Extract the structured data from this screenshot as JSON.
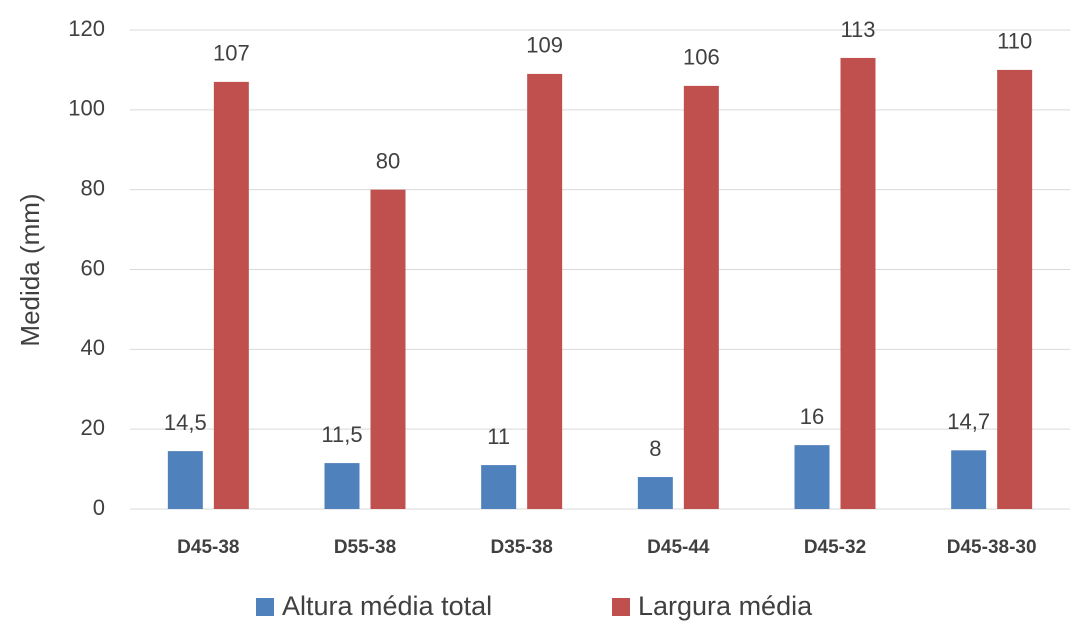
{
  "chart_data": {
    "type": "bar",
    "ylabel": "Medida (mm)",
    "categories": [
      "D45-38",
      "D55-38",
      "D35-38",
      "D45-44",
      "D45-32",
      "D45-38-30"
    ],
    "series": [
      {
        "name": "Altura média total",
        "color": "#4f81bd",
        "values": [
          14.5,
          11.5,
          11,
          8,
          16,
          14.7
        ],
        "value_labels": [
          "14,5",
          "11,5",
          "11",
          "8",
          "16",
          "14,7"
        ]
      },
      {
        "name": "Largura média",
        "color": "#c0504d",
        "values": [
          107,
          80,
          109,
          106,
          113,
          110
        ]
      }
    ],
    "ylim": [
      0,
      120
    ],
    "yticks": [
      0,
      20,
      40,
      60,
      80,
      100,
      120
    ],
    "grid": true,
    "legend": "bottom"
  }
}
